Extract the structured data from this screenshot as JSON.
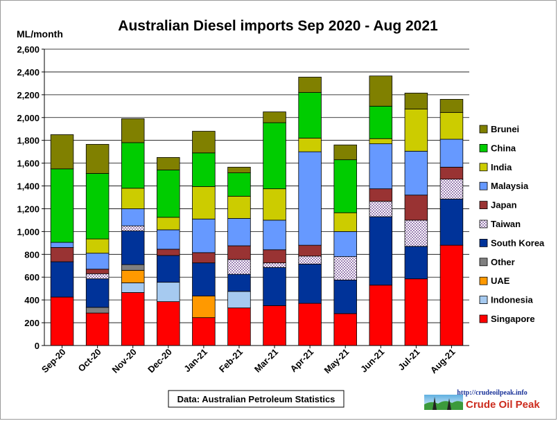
{
  "chart_data": {
    "type": "bar",
    "stacked": true,
    "title": "Australian Diesel imports Sep 2020 - Aug 2021",
    "ylabel": "ML/month",
    "xlabel": "",
    "ylim": [
      0,
      2600
    ],
    "yticks": [
      0,
      200,
      400,
      600,
      800,
      1000,
      1200,
      1400,
      1600,
      1800,
      2000,
      2200,
      2400,
      2600
    ],
    "ytick_labels": [
      "0",
      "200",
      "400",
      "600",
      "800",
      "1,000",
      "1,200",
      "1,400",
      "1,600",
      "1,800",
      "2,000",
      "2,200",
      "2,400",
      "2,600"
    ],
    "grid": true,
    "legend_position": "right",
    "categories": [
      "Sep-20",
      "Oct-20",
      "Nov-20",
      "Dec-20",
      "Jan-21",
      "Feb-21",
      "Mar-21",
      "Apr-21",
      "May-21",
      "Jun-21",
      "Jul-21",
      "Aug-21"
    ],
    "series": [
      {
        "name": "Singapore",
        "color": "#ff0000",
        "values": [
          425,
          285,
          465,
          385,
          245,
          330,
          350,
          370,
          280,
          530,
          585,
          880
        ]
      },
      {
        "name": "Indonesia",
        "color": "#a6caf0",
        "values": [
          0,
          0,
          85,
          170,
          0,
          145,
          0,
          0,
          0,
          0,
          0,
          0
        ]
      },
      {
        "name": "UAE",
        "color": "#ff9900",
        "values": [
          0,
          0,
          110,
          0,
          190,
          0,
          0,
          0,
          0,
          0,
          0,
          0
        ]
      },
      {
        "name": "Other",
        "color": "#808080",
        "values": [
          0,
          50,
          50,
          0,
          0,
          0,
          0,
          0,
          0,
          0,
          0,
          0
        ]
      },
      {
        "name": "South Korea",
        "color": "#003399",
        "values": [
          310,
          250,
          295,
          235,
          290,
          150,
          335,
          345,
          295,
          600,
          285,
          405
        ]
      },
      {
        "name": "Taiwan",
        "color": "#ece0f4",
        "pattern": "checker",
        "values": [
          0,
          45,
          45,
          0,
          0,
          130,
          40,
          70,
          205,
          135,
          230,
          175
        ]
      },
      {
        "name": "Japan",
        "color": "#993333",
        "values": [
          125,
          40,
          0,
          55,
          90,
          120,
          115,
          95,
          0,
          110,
          220,
          105
        ]
      },
      {
        "name": "Malaysia",
        "color": "#6699ff",
        "values": [
          45,
          140,
          150,
          170,
          295,
          240,
          260,
          820,
          220,
          395,
          385,
          245
        ]
      },
      {
        "name": "India",
        "color": "#cccc00",
        "values": [
          0,
          125,
          180,
          110,
          285,
          195,
          275,
          120,
          165,
          45,
          370,
          235
        ]
      },
      {
        "name": "China",
        "color": "#00cc00",
        "values": [
          645,
          575,
          400,
          415,
          295,
          205,
          580,
          400,
          465,
          285,
          0,
          0
        ]
      },
      {
        "name": "Brunei",
        "color": "#808000",
        "values": [
          300,
          255,
          210,
          110,
          190,
          50,
          95,
          135,
          130,
          265,
          140,
          115
        ]
      }
    ],
    "legend_order": [
      "Brunei",
      "China",
      "India",
      "Malaysia",
      "Japan",
      "Taiwan",
      "South Korea",
      "Other",
      "UAE",
      "Indonesia",
      "Singapore"
    ],
    "source_note": "Data: Australian Petroleum Statistics"
  },
  "logo": {
    "url_text": "http://crudeoilpeak.info",
    "name": "Crude Oil Peak"
  }
}
